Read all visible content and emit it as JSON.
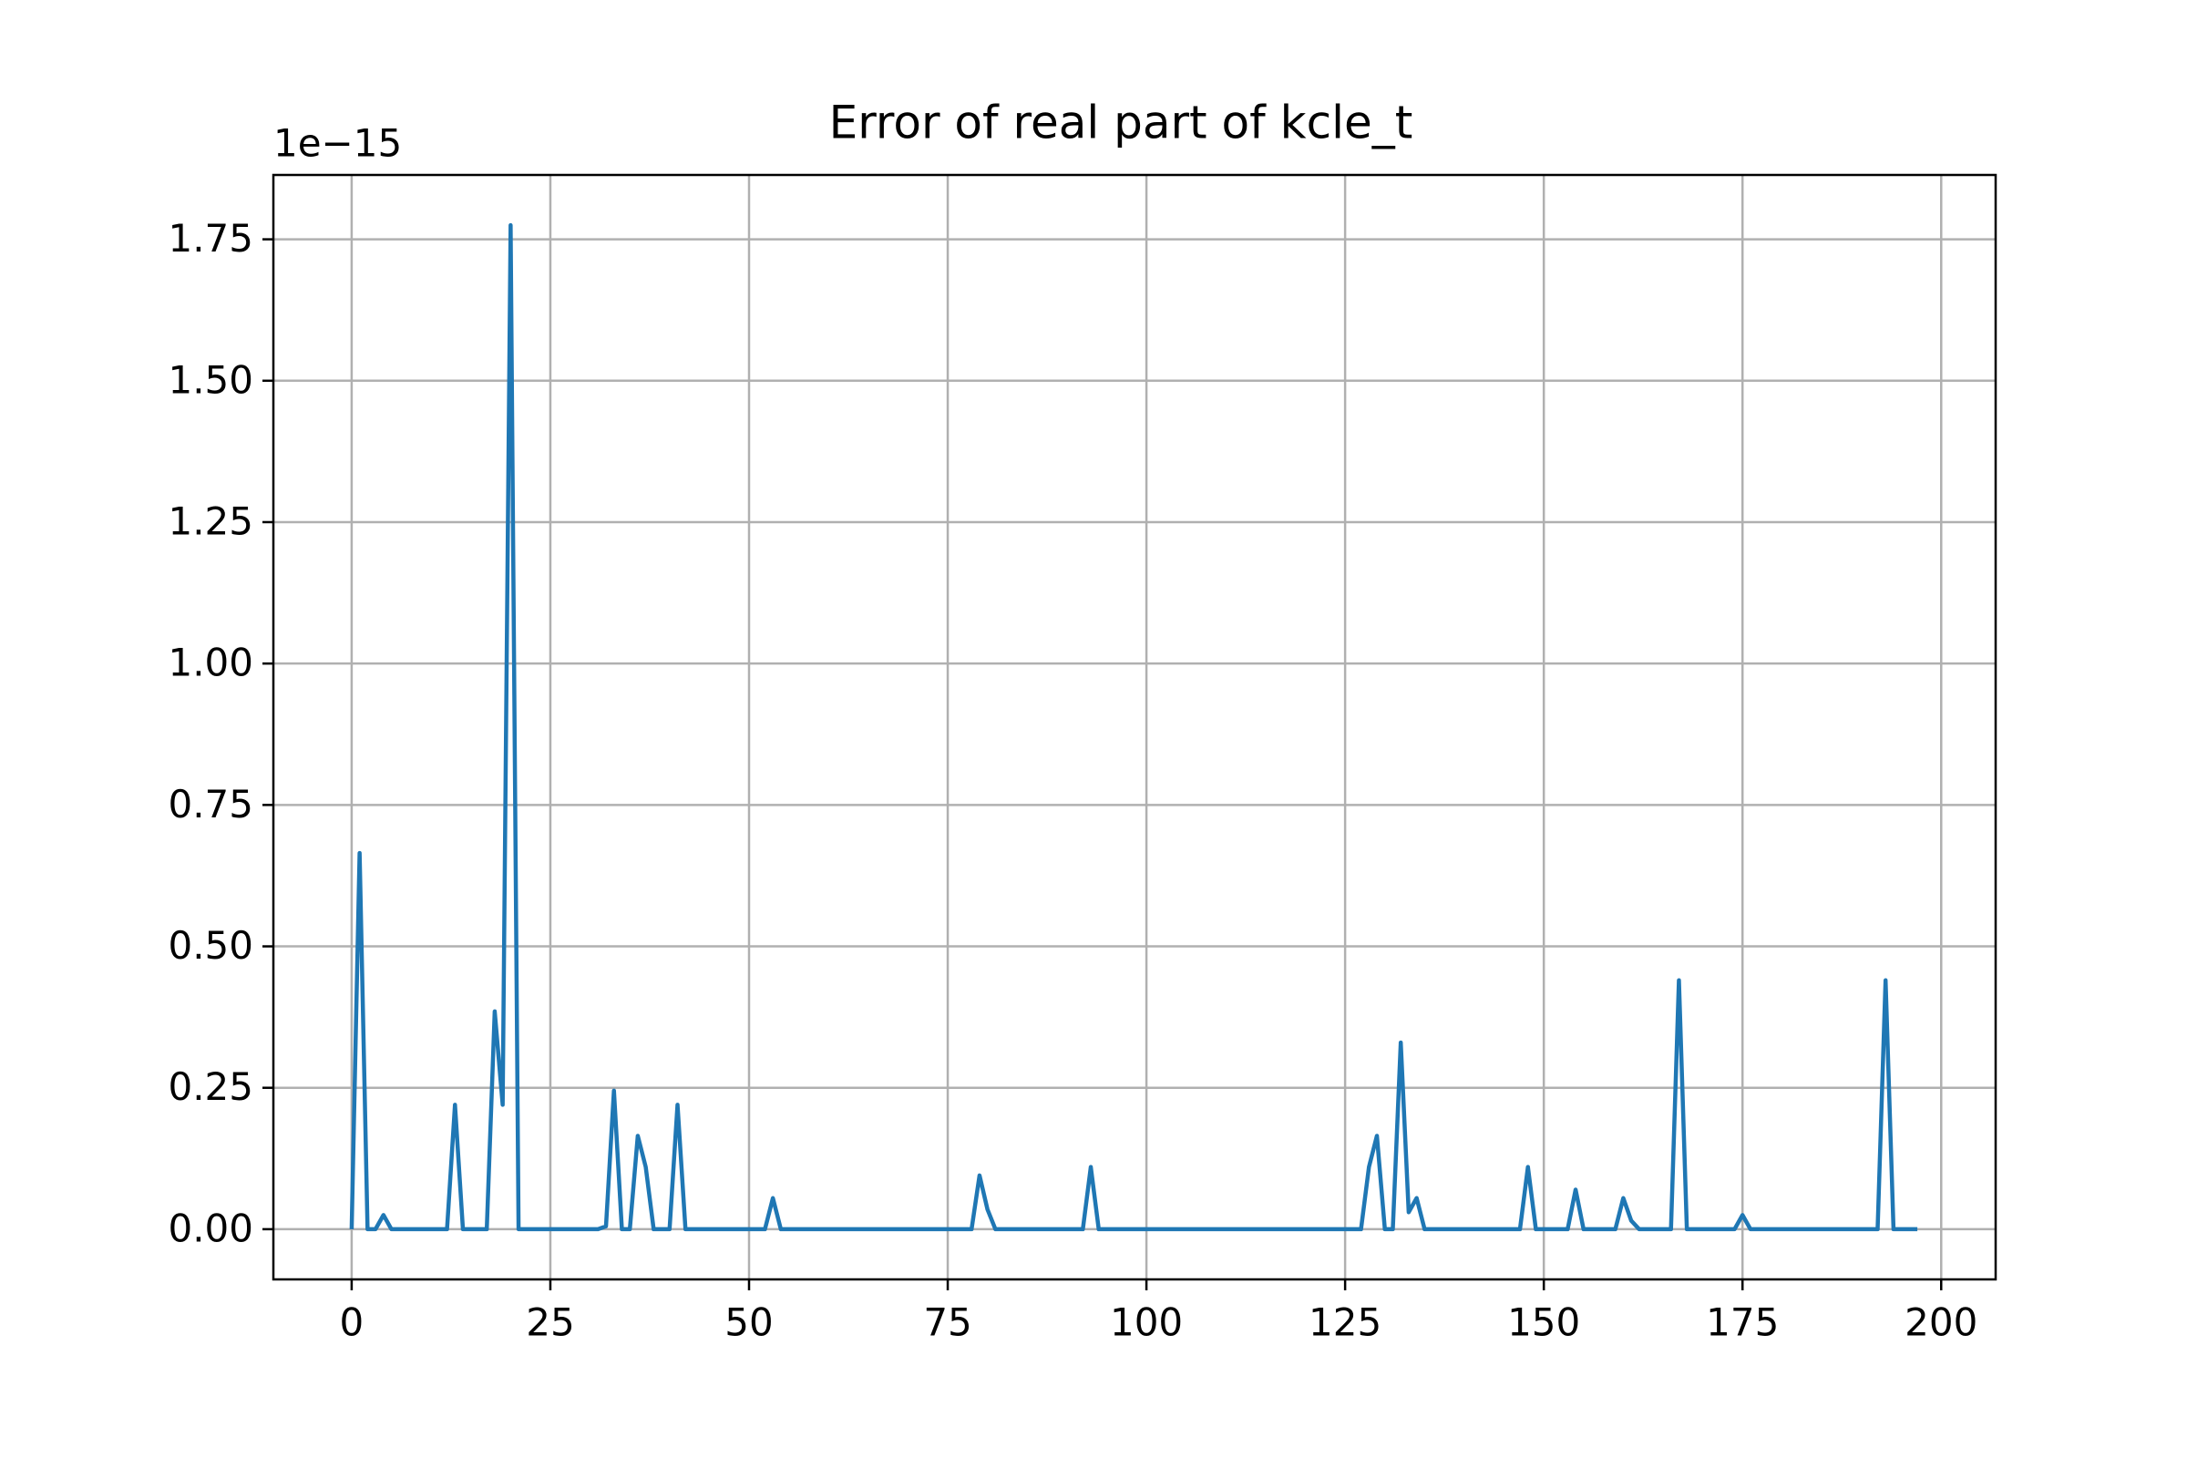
{
  "chart_data": {
    "type": "line",
    "title": "Error of real part of kcle_t",
    "offset_text": "1e−15",
    "x": [
      0,
      1,
      2,
      3,
      4,
      5,
      6,
      7,
      8,
      9,
      10,
      11,
      12,
      13,
      14,
      15,
      16,
      17,
      18,
      19,
      20,
      21,
      22,
      23,
      24,
      25,
      26,
      27,
      28,
      29,
      30,
      31,
      32,
      33,
      34,
      35,
      36,
      37,
      38,
      39,
      40,
      41,
      42,
      43,
      44,
      45,
      46,
      47,
      48,
      49,
      50,
      51,
      52,
      53,
      54,
      55,
      56,
      57,
      58,
      59,
      60,
      61,
      62,
      63,
      64,
      65,
      66,
      67,
      68,
      69,
      70,
      71,
      72,
      73,
      74,
      75,
      76,
      77,
      78,
      79,
      80,
      81,
      82,
      83,
      84,
      85,
      86,
      87,
      88,
      89,
      90,
      91,
      92,
      93,
      94,
      95,
      96,
      97,
      98,
      99,
      100,
      101,
      102,
      103,
      104,
      105,
      106,
      107,
      108,
      109,
      110,
      111,
      112,
      113,
      114,
      115,
      116,
      117,
      118,
      119,
      120,
      121,
      122,
      123,
      124,
      125,
      126,
      127,
      128,
      129,
      130,
      131,
      132,
      133,
      134,
      135,
      136,
      137,
      138,
      139,
      140,
      141,
      142,
      143,
      144,
      145,
      146,
      147,
      148,
      149,
      150,
      151,
      152,
      153,
      154,
      155,
      156,
      157,
      158,
      159,
      160,
      161,
      162,
      163,
      164,
      165,
      166,
      167,
      168,
      169,
      170,
      171,
      172,
      173,
      174,
      175,
      176,
      177,
      178,
      179,
      180,
      181,
      182,
      183,
      184,
      185,
      186,
      187,
      188,
      189,
      190,
      191,
      192,
      193,
      194,
      195,
      196,
      197
    ],
    "series": [
      {
        "color": "#1f77b4",
        "values": [
          0,
          0.665,
          0,
          0,
          0.025,
          0,
          0,
          0,
          0,
          0,
          0,
          0,
          0,
          0.22,
          0,
          0,
          0,
          0,
          0.385,
          0.22,
          1.775,
          0,
          0,
          0,
          0,
          0,
          0,
          0,
          0,
          0,
          0,
          0,
          0.005,
          0.245,
          0,
          0,
          0.165,
          0.11,
          0,
          0,
          0,
          0.22,
          0,
          0,
          0,
          0,
          0,
          0,
          0,
          0,
          0,
          0,
          0,
          0.055,
          0,
          0,
          0,
          0,
          0,
          0,
          0,
          0,
          0,
          0,
          0,
          0,
          0,
          0,
          0,
          0,
          0,
          0,
          0,
          0,
          0,
          0,
          0,
          0,
          0,
          0.095,
          0.035,
          0,
          0,
          0,
          0,
          0,
          0,
          0,
          0,
          0,
          0,
          0,
          0,
          0.11,
          0,
          0,
          0,
          0,
          0,
          0,
          0,
          0,
          0,
          0,
          0,
          0,
          0,
          0,
          0,
          0,
          0,
          0,
          0,
          0,
          0,
          0,
          0,
          0,
          0,
          0,
          0,
          0,
          0,
          0,
          0,
          0,
          0,
          0,
          0.11,
          0.165,
          0,
          0,
          0.33,
          0.03,
          0.055,
          0,
          0,
          0,
          0,
          0,
          0,
          0,
          0,
          0,
          0,
          0,
          0,
          0,
          0.11,
          0,
          0,
          0,
          0,
          0,
          0.07,
          0,
          0,
          0,
          0,
          0,
          0.055,
          0.015,
          0,
          0,
          0,
          0,
          0,
          0.44,
          0,
          0,
          0,
          0,
          0,
          0,
          0,
          0.025,
          0,
          0,
          0,
          0,
          0,
          0,
          0,
          0,
          0,
          0,
          0,
          0,
          0,
          0,
          0,
          0,
          0,
          0.44,
          0,
          0,
          0,
          0
        ]
      }
    ],
    "xlim": [
      -9.85,
      206.85
    ],
    "xticks": [
      0,
      25,
      50,
      75,
      100,
      125,
      150,
      175,
      200
    ],
    "ylim": [
      -0.08875,
      1.86375
    ],
    "yticks": [
      {
        "value": 0,
        "label": "0.00"
      },
      0.25,
      {
        "value": 0.5,
        "label": "0.50"
      },
      0.75,
      {
        "value": 1,
        "label": "1.00"
      },
      1.25,
      {
        "value": 1.5,
        "label": "1.50"
      },
      1.75
    ],
    "grid": true
  }
}
